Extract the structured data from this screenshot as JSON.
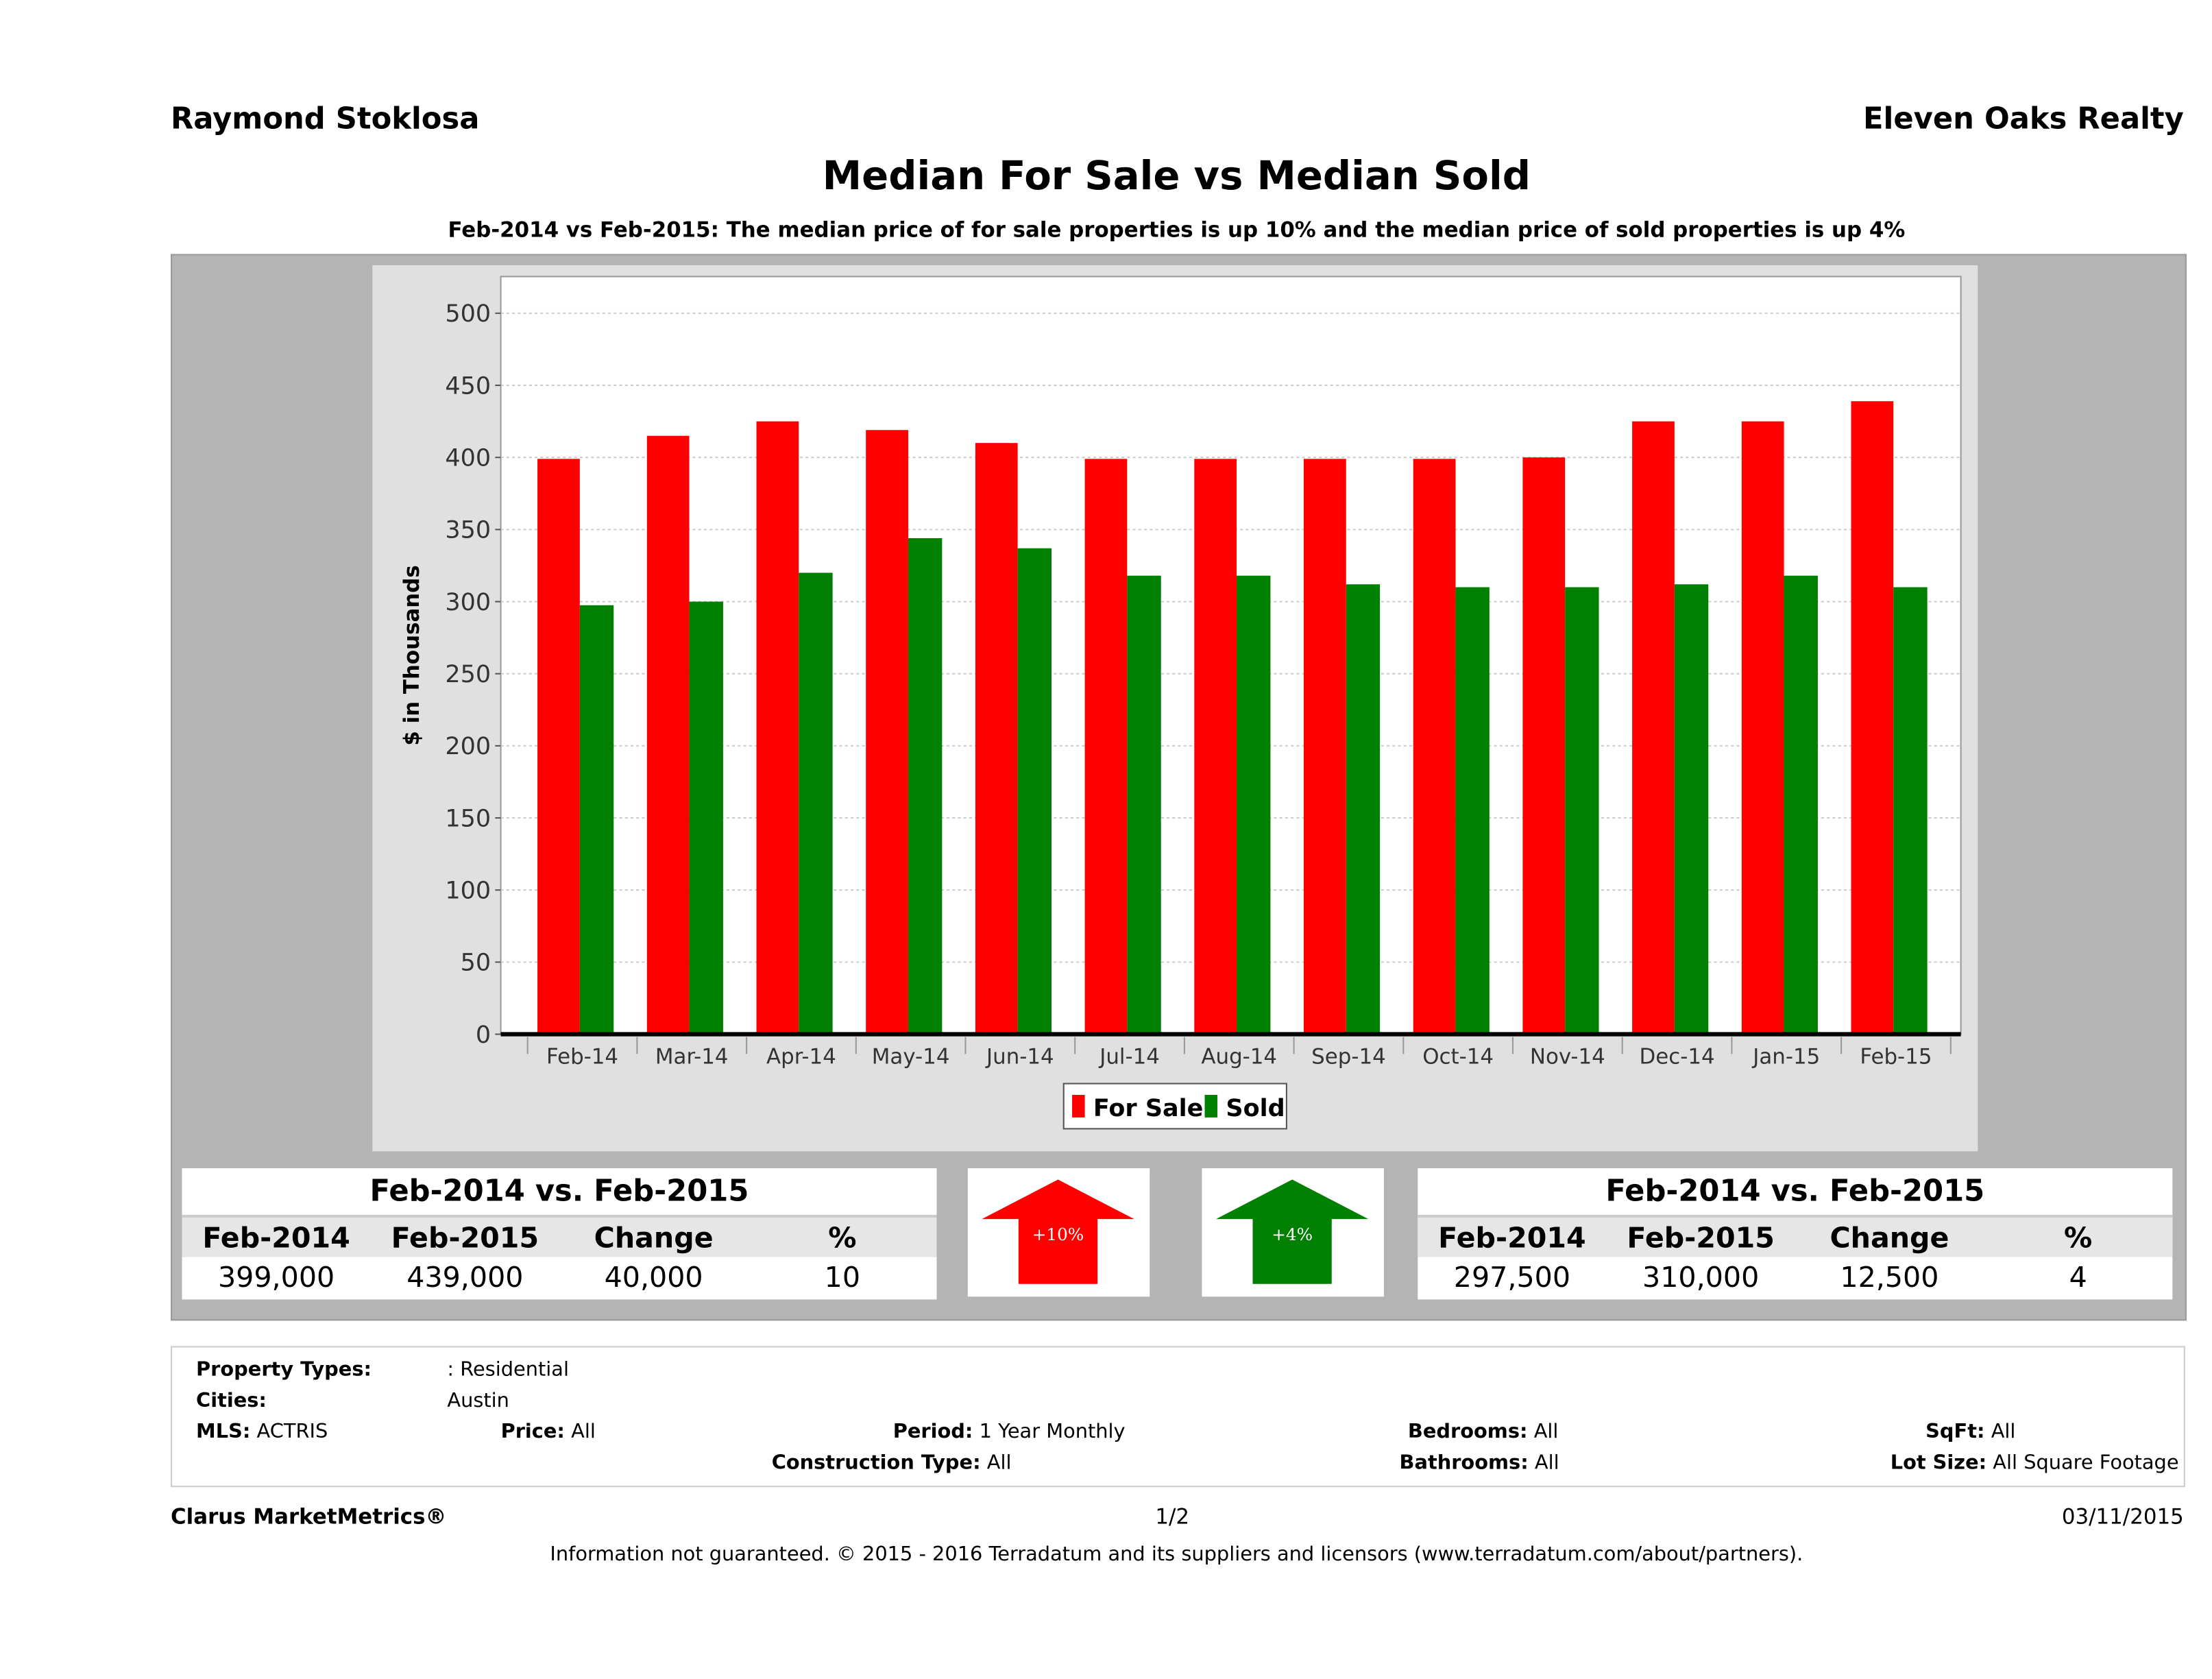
{
  "header": {
    "agent": "Raymond Stoklosa",
    "company": "Eleven Oaks Realty"
  },
  "title": "Median For Sale vs Median Sold",
  "subtitle": "Feb-2014 vs Feb-2015: The median price of for sale properties is up 10% and the median price of sold properties is up 4%",
  "chart_data": {
    "type": "bar",
    "ylabel": "$ in Thousands",
    "ylim": [
      0,
      500
    ],
    "yticks": [
      "0",
      "50",
      "100",
      "150",
      "200",
      "250",
      "300",
      "350",
      "400",
      "450",
      "500"
    ],
    "grid": true,
    "legend_position": "bottom",
    "categories": [
      "Feb-14",
      "Mar-14",
      "Apr-14",
      "May-14",
      "Jun-14",
      "Jul-14",
      "Aug-14",
      "Sep-14",
      "Oct-14",
      "Nov-14",
      "Dec-14",
      "Jan-15",
      "Feb-15"
    ],
    "series": [
      {
        "name": "For Sale",
        "color": "#ff0000",
        "values": [
          399,
          415,
          425,
          419,
          410,
          399,
          399,
          399,
          399,
          400,
          425,
          425,
          439
        ]
      },
      {
        "name": "Sold",
        "color": "#008000",
        "values": [
          297.5,
          300,
          320,
          344,
          337,
          318,
          318,
          312,
          310,
          310,
          312,
          318,
          310
        ]
      }
    ]
  },
  "for_sale_table": {
    "heading": "Feb-2014 vs. Feb-2015",
    "columns": [
      "Feb-2014",
      "Feb-2015",
      "Change",
      "%"
    ],
    "values": [
      "399,000",
      "439,000",
      "40,000",
      "10"
    ]
  },
  "sold_table": {
    "heading": "Feb-2014 vs. Feb-2015",
    "columns": [
      "Feb-2014",
      "Feb-2015",
      "Change",
      "%"
    ],
    "values": [
      "297,500",
      "310,000",
      "12,500",
      "4"
    ]
  },
  "arrows": {
    "for_sale": {
      "label": "+10%",
      "color": "#ff0000",
      "direction": "up"
    },
    "sold": {
      "label": "+4%",
      "color": "#008000",
      "direction": "up"
    }
  },
  "info": {
    "property_types_label": "Property Types:",
    "property_types": ": Residential",
    "cities_label": "Cities:",
    "cities": "Austin",
    "mls_label": "MLS:",
    "mls": "ACTRIS",
    "price_label": "Price:",
    "price": "All",
    "period_label": "Period:",
    "period": "1 Year Monthly",
    "bedrooms_label": "Bedrooms:",
    "bedrooms": "All",
    "sqft_label": "SqFt:",
    "sqft": "All",
    "construction_label": "Construction Type:",
    "construction": "All",
    "bathrooms_label": "Bathrooms:",
    "bathrooms": "All",
    "lot_label": "Lot Size:",
    "lot": "All Square Footage"
  },
  "footer": {
    "brand": "Clarus MarketMetrics®",
    "page": "1/2",
    "date": "03/11/2015",
    "disclaimer": "Information not guaranteed. © 2015 - 2016 Terradatum and its suppliers and licensors (www.terradatum.com/about/partners)."
  }
}
